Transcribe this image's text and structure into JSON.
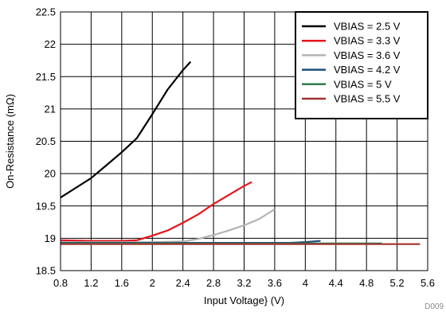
{
  "chart_data": {
    "type": "line",
    "xlabel": "Input Voltage} (V)",
    "ylabel": "On-Resistance (mΩ)",
    "xlim": [
      0.8,
      5.6
    ],
    "ylim": [
      18.5,
      22.5
    ],
    "xticks": [
      "0.8",
      "1.2",
      "1.6",
      "2",
      "2.4",
      "2.8",
      "3.2",
      "3.6",
      "4",
      "4.4",
      "4.8",
      "5.2",
      "5.6"
    ],
    "yticks": [
      "18.5",
      "19",
      "19.5",
      "20",
      "20.5",
      "21",
      "21.5",
      "22",
      "22.5"
    ],
    "grid": true,
    "legend_position": "top-right",
    "figure_id": "D009",
    "series": [
      {
        "name": "VBIAS = 2.5 V",
        "color": "#000000",
        "x": [
          0.8,
          1.0,
          1.2,
          1.4,
          1.6,
          1.8,
          2.0,
          2.2,
          2.4,
          2.5
        ],
        "y": [
          19.63,
          19.78,
          19.93,
          20.13,
          20.33,
          20.55,
          20.92,
          21.3,
          21.6,
          21.73
        ]
      },
      {
        "name": "VBIAS = 3.3 V",
        "color": "#e8141c",
        "x": [
          0.8,
          1.2,
          1.6,
          1.8,
          2.0,
          2.2,
          2.4,
          2.6,
          2.8,
          3.0,
          3.2,
          3.3
        ],
        "y": [
          18.97,
          18.96,
          18.96,
          18.97,
          19.04,
          19.12,
          19.24,
          19.37,
          19.53,
          19.67,
          19.81,
          19.87
        ]
      },
      {
        "name": "VBIAS = 3.6 V",
        "color": "#b3b3b3",
        "x": [
          0.8,
          1.6,
          2.0,
          2.4,
          2.6,
          2.8,
          3.0,
          3.2,
          3.4,
          3.6
        ],
        "y": [
          18.94,
          18.94,
          18.94,
          18.95,
          18.99,
          19.05,
          19.12,
          19.2,
          19.3,
          19.45
        ]
      },
      {
        "name": "VBIAS = 4.2 V",
        "color": "#1f4e79",
        "x": [
          0.8,
          2.0,
          3.0,
          3.6,
          3.8,
          4.0,
          4.2
        ],
        "y": [
          18.93,
          18.93,
          18.93,
          18.93,
          18.93,
          18.94,
          18.96
        ]
      },
      {
        "name": "VBIAS = 5 V",
        "color": "#2e7d4f",
        "x": [
          0.8,
          2.0,
          3.0,
          4.0,
          5.0
        ],
        "y": [
          18.92,
          18.92,
          18.92,
          18.92,
          18.92
        ]
      },
      {
        "name": "VBIAS = 5.5 V",
        "color": "#a0312e",
        "x": [
          0.8,
          2.0,
          3.0,
          4.0,
          5.0,
          5.5
        ],
        "y": [
          18.91,
          18.91,
          18.91,
          18.91,
          18.91,
          18.91
        ]
      }
    ]
  }
}
